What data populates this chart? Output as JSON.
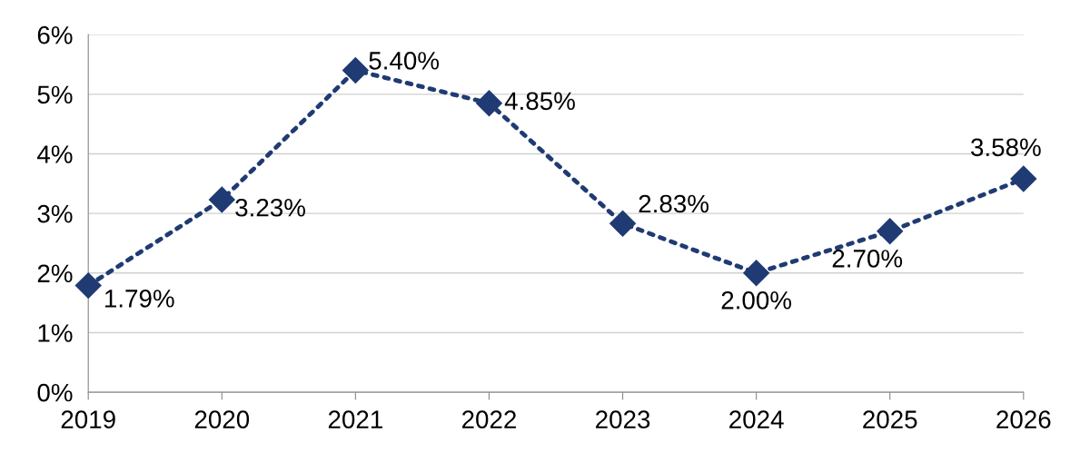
{
  "chart_data": {
    "type": "line",
    "categories": [
      "2019",
      "2020",
      "2021",
      "2022",
      "2023",
      "2024",
      "2025",
      "2026"
    ],
    "series": [
      {
        "color": "#203b73",
        "values": [
          1.79,
          3.23,
          5.4,
          4.85,
          2.83,
          2.0,
          2.7,
          3.58
        ],
        "value_labels": [
          "1.79%",
          "3.23%",
          "5.40%",
          "4.85%",
          "2.83%",
          "2.00%",
          "2.70%",
          "3.58%"
        ]
      }
    ],
    "ylim": [
      0,
      6
    ],
    "yticks": [
      {
        "value": 0,
        "label": "0%"
      },
      {
        "value": 1,
        "label": "1%"
      },
      {
        "value": 2,
        "label": "2%"
      },
      {
        "value": 3,
        "label": "3%"
      },
      {
        "value": 4,
        "label": "4%"
      },
      {
        "value": 5,
        "label": "5%"
      },
      {
        "value": 6,
        "label": "6%"
      }
    ],
    "grid": "y",
    "marker": "diamond",
    "line_style": "dotted"
  }
}
